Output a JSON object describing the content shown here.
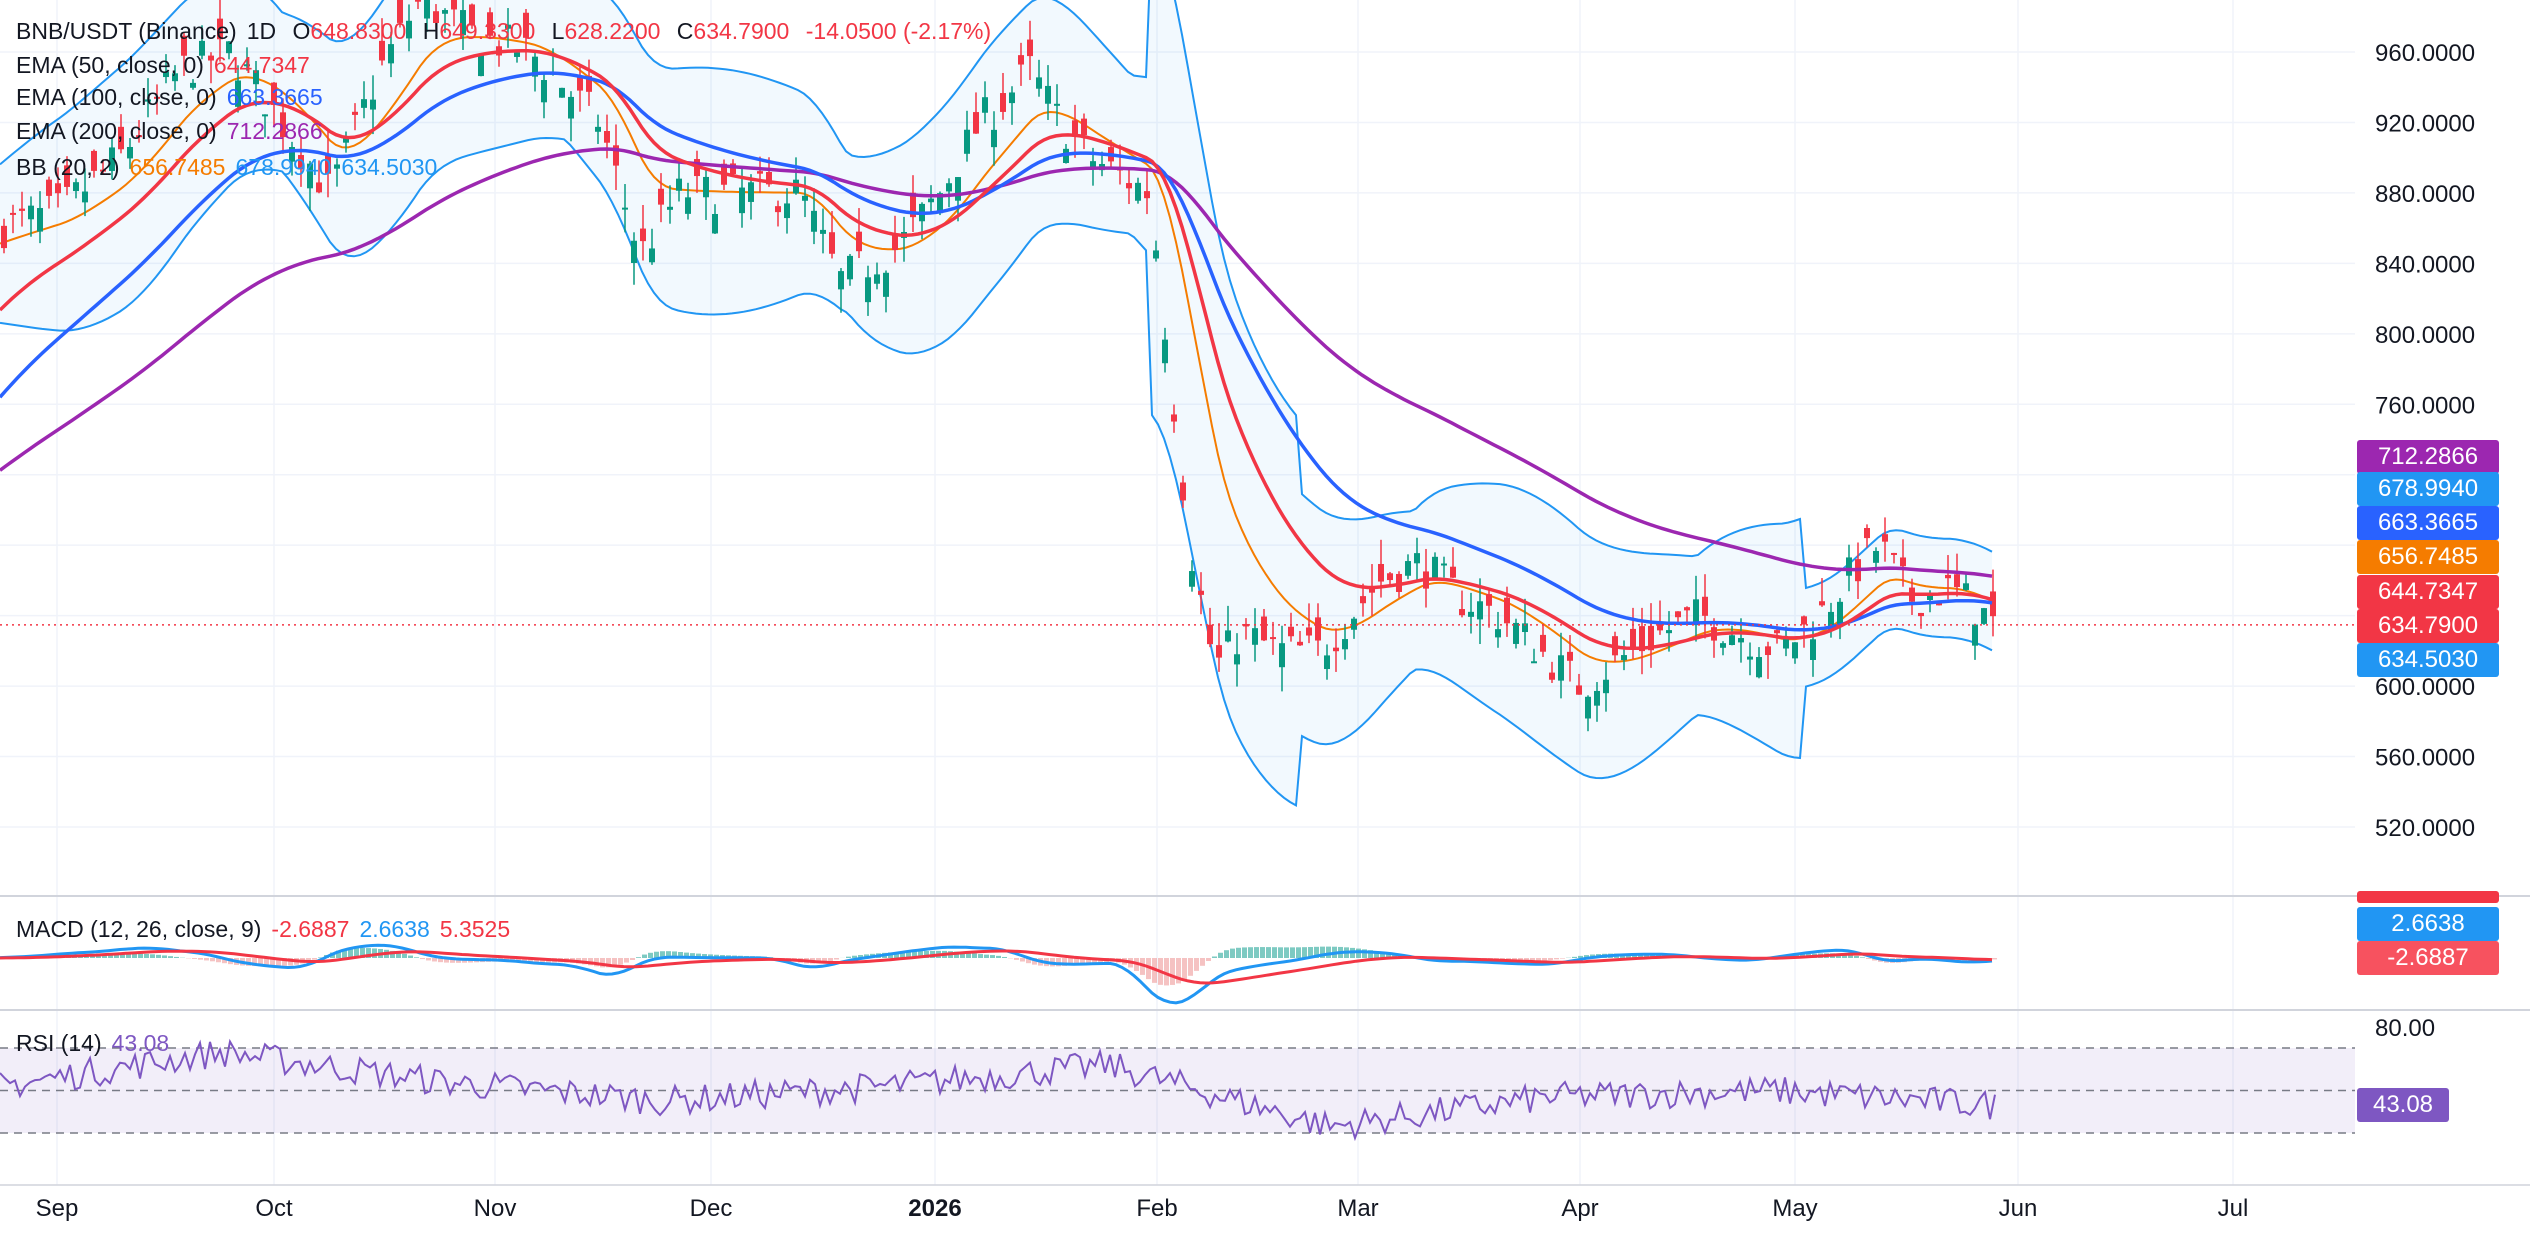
{
  "symbol": {
    "pair": "BNB/USDT (Binance)",
    "interval": "1D",
    "open_label": "O",
    "open": "648.8300",
    "high_label": "H",
    "high": "649.3300",
    "low_label": "L",
    "low": "628.2200",
    "close_label": "C",
    "close": "634.7900",
    "change": "-14.0500 (-2.17%)"
  },
  "indicators": {
    "ema50": {
      "label": "EMA (50, close, 0)",
      "value": "644.7347",
      "color": "#f23645"
    },
    "ema100": {
      "label": "EMA (100, close, 0)",
      "value": "663.3665",
      "color": "#2962ff"
    },
    "ema200": {
      "label": "EMA (200, close, 0)",
      "value": "712.2866",
      "color": "#9c27b0"
    },
    "bb": {
      "label": "BB (20, 2)",
      "basis": "656.7485",
      "upper": "678.9940",
      "lower": "634.5030",
      "basis_color": "#f57c00",
      "band_color": "#2196f3"
    },
    "macd": {
      "label": "MACD (12, 26, close, 9)",
      "hist": "-2.6887",
      "macd": "2.6638",
      "signal": "5.3525",
      "macd_color": "#2196f3",
      "signal_color": "#f23645"
    },
    "rsi": {
      "label": "RSI (14)",
      "value": "43.08",
      "color": "#7e57c2"
    }
  },
  "price_axis": {
    "labels": [
      "960.0000",
      "920.0000",
      "880.0000",
      "840.0000",
      "800.0000",
      "760.0000",
      "600.0000",
      "560.0000",
      "520.0000"
    ]
  },
  "price_tags": [
    {
      "value": "712.2866",
      "color": "#9c27b0"
    },
    {
      "value": "678.9940",
      "color": "#2196f3"
    },
    {
      "value": "663.3665",
      "color": "#2962ff"
    },
    {
      "value": "656.7485",
      "color": "#f57c00"
    },
    {
      "value": "644.7347",
      "color": "#f23645"
    },
    {
      "value": "634.7900",
      "color": "#f23645"
    },
    {
      "value": "634.5030",
      "color": "#2196f3"
    }
  ],
  "macd_tags": [
    {
      "value": "2.6638",
      "color": "#2196f3"
    },
    {
      "value": "-2.6887",
      "color": "#f7525f"
    }
  ],
  "rsi_axis": {
    "label": "80.00",
    "tag": "43.08",
    "tag_color": "#7e57c2"
  },
  "time_axis": [
    "Sep",
    "Oct",
    "Nov",
    "Dec",
    "2026",
    "Feb",
    "Mar",
    "Apr",
    "May",
    "Jun",
    "Jul"
  ],
  "chart_data": [
    {
      "type": "line",
      "title": "",
      "x": [
        "Sep",
        "Oct",
        "Nov",
        "Dec",
        "2026",
        "Feb",
        "Mar",
        "Apr",
        "May",
        "Jun"
      ],
      "series": [
        {
          "name": "EMA (50, close, 0)",
          "values": [
            812,
            870,
            935,
            900,
            895,
            860,
            680,
            652,
            630,
            645
          ]
        },
        {
          "name": "EMA (100, close, 0)",
          "values": [
            762,
            800,
            940,
            925,
            910,
            905,
            780,
            700,
            672,
            663
          ]
        },
        {
          "name": "EMA (200, close, 0)",
          "values": [
            728,
            770,
            860,
            878,
            882,
            880,
            815,
            770,
            735,
            712
          ]
        }
      ],
      "ylim": [
        480,
        990
      ]
    },
    {
      "type": "line",
      "title": "",
      "x": [
        "Sep",
        "Oct",
        "Nov",
        "Dec",
        "2026",
        "Feb",
        "Mar",
        "Apr",
        "May",
        "Jun"
      ],
      "series": [
        {
          "name": "RSI (14)",
          "values": [
            52,
            68,
            54,
            45,
            52,
            62,
            33,
            47,
            50,
            43
          ]
        }
      ],
      "ylim": [
        20,
        85
      ]
    }
  ]
}
